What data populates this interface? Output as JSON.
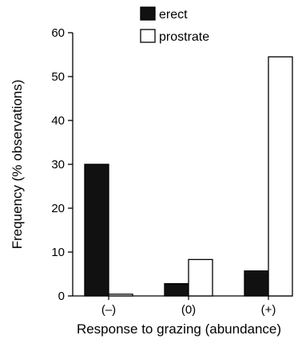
{
  "chart_data": {
    "type": "bar",
    "categories": [
      "(–)",
      "(0)",
      "(+)"
    ],
    "series": [
      {
        "name": "erect",
        "values": [
          30,
          2.8,
          5.7
        ],
        "color": "#111111"
      },
      {
        "name": "prostrate",
        "values": [
          0.4,
          8.3,
          54.5
        ],
        "color": "#ffffff"
      }
    ],
    "xlabel": "Response to grazing (abundance)",
    "ylabel": "Frequency (% observations)",
    "ylim": [
      0,
      60
    ],
    "yticks": [
      0,
      10,
      20,
      30,
      40,
      50,
      60
    ],
    "grid": false,
    "legend": "top-right"
  }
}
